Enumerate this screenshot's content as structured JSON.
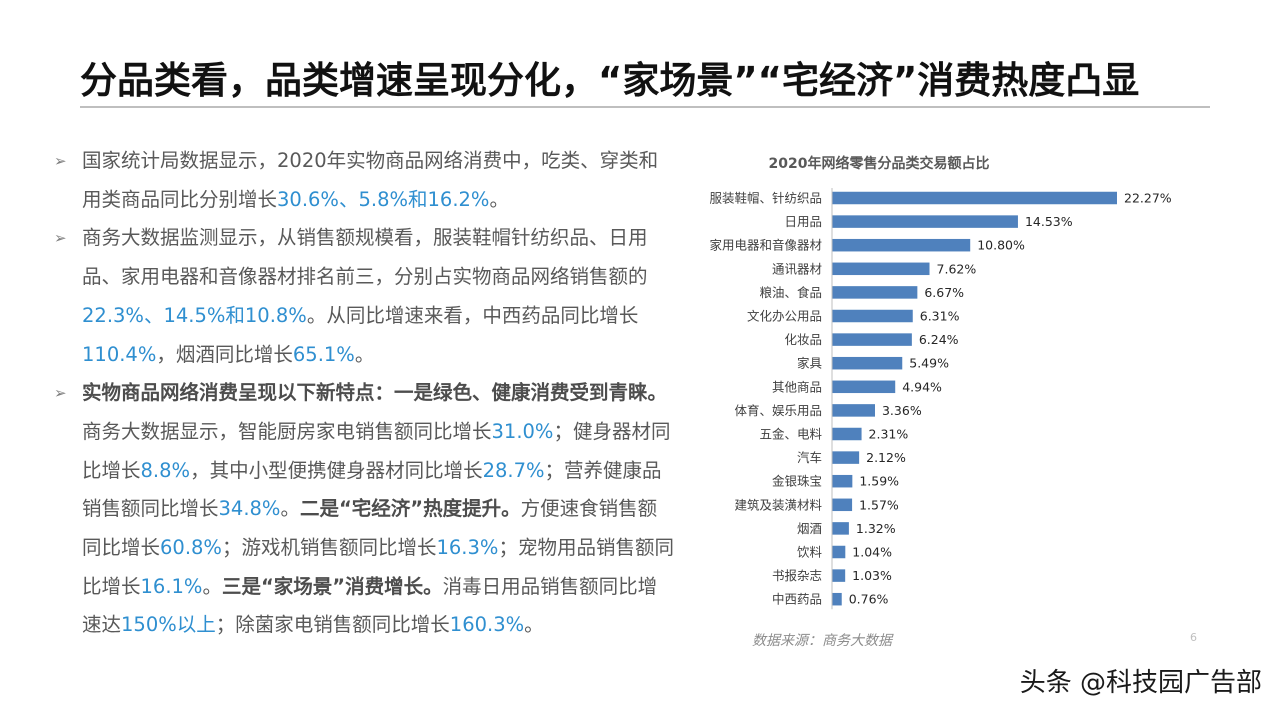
{
  "title": "分品类看，品类增速呈现分化，“家场景”“宅经济”消费热度凸显",
  "bullets": [
    [
      {
        "t": "国家统计局数据显示，2020年实物商品网络消费中，吃类、穿类和用类商品同比分别增长"
      },
      {
        "t": "30.6%、5.8%和16.2%",
        "s": "hl"
      },
      {
        "t": "。"
      }
    ],
    [
      {
        "t": "商务大数据监测显示，从销售额规模看，服装鞋帽针纺织品、日用品、家用电器和音像器材排名前三，分别占实物商品网络销售额的"
      },
      {
        "t": "22.3%、14.5%和10.8%",
        "s": "hl"
      },
      {
        "t": "。从同比增速来看，中西药品同比增长"
      },
      {
        "t": "110.4%",
        "s": "hl"
      },
      {
        "t": "，烟酒同比增长"
      },
      {
        "t": "65.1%",
        "s": "hl"
      },
      {
        "t": "。"
      }
    ],
    [
      {
        "t": "实物商品网络消费呈现以下新特点：一是绿色、健康消费受到青睐。",
        "s": "strong"
      },
      {
        "t": "商务大数据显示，智能厨房家电销售额同比增长"
      },
      {
        "t": "31.0%",
        "s": "hl"
      },
      {
        "t": "；健身器材同比增长"
      },
      {
        "t": "8.8%",
        "s": "hl"
      },
      {
        "t": "，其中小型便携健身器材同比增长"
      },
      {
        "t": "28.7%",
        "s": "hl"
      },
      {
        "t": "；营养健康品销售额同比增长"
      },
      {
        "t": "34.8%",
        "s": "hl"
      },
      {
        "t": "。"
      },
      {
        "t": "二是“宅经济”热度提升。",
        "s": "strong"
      },
      {
        "t": "方便速食销售额同比增长"
      },
      {
        "t": "60.8%",
        "s": "hl"
      },
      {
        "t": "；游戏机销售额同比增长"
      },
      {
        "t": "16.3%",
        "s": "hl"
      },
      {
        "t": "；宠物用品销售额同比增长"
      },
      {
        "t": "16.1%",
        "s": "hl"
      },
      {
        "t": "。"
      },
      {
        "t": "三是“家场景”消费增长。",
        "s": "strong"
      },
      {
        "t": "消毒日用品销售额同比增速达"
      },
      {
        "t": "150%以上",
        "s": "hl"
      },
      {
        "t": "；除菌家电销售额同比增长"
      },
      {
        "t": "160.3%",
        "s": "hl"
      },
      {
        "t": "。"
      }
    ]
  ],
  "bullet_icon": "arrow-right-icon",
  "chart_data": {
    "type": "bar",
    "orientation": "horizontal",
    "title": "2020年网络零售分品类交易额占比",
    "categories": [
      "服装鞋帽、针纺织品",
      "日用品",
      "家用电器和音像器材",
      "通讯器材",
      "粮油、食品",
      "文化办公用品",
      "化妆品",
      "家具",
      "其他商品",
      "体育、娱乐用品",
      "五金、电料",
      "汽车",
      "金银珠宝",
      "建筑及装潢材料",
      "烟酒",
      "饮料",
      "书报杂志",
      "中西药品"
    ],
    "values": [
      22.27,
      14.53,
      10.8,
      7.62,
      6.67,
      6.31,
      6.24,
      5.49,
      4.94,
      3.36,
      2.31,
      2.12,
      1.59,
      1.57,
      1.32,
      1.04,
      1.03,
      0.76
    ],
    "value_labels": [
      "22.27%",
      "14.53%",
      "10.80%",
      "7.62%",
      "6.67%",
      "6.31%",
      "6.24%",
      "5.49%",
      "4.94%",
      "3.36%",
      "2.31%",
      "2.12%",
      "1.59%",
      "1.57%",
      "1.32%",
      "1.04%",
      "1.03%",
      "0.76%"
    ],
    "xlim": [
      0,
      22.27
    ],
    "bar_color": "#4f81bd",
    "grid": false,
    "legend": "none",
    "source": "数据来源：商务大数据"
  },
  "page_number": "6",
  "watermark": "头条 @科技园广告部",
  "colors": {
    "highlight": "#2f8fd0",
    "text": "#595959",
    "bar": "#4f81bd"
  }
}
